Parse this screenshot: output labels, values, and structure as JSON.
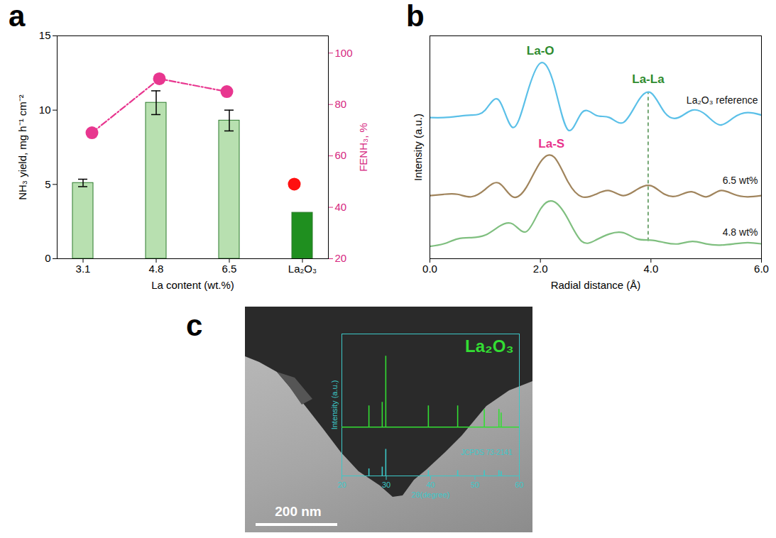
{
  "chart_data": [
    {
      "panel": "a",
      "type": "bar",
      "categories": [
        "3.1",
        "4.8",
        "6.5",
        "La₂O₃"
      ],
      "x_label": "La content (wt.%)",
      "y_label": "NH₃ yield, mg h⁻¹ cm⁻²",
      "y2_label": "FENH₃, %",
      "ylim": [
        0,
        15
      ],
      "yticks": [
        0,
        5,
        10,
        15
      ],
      "y2lim": [
        20,
        106.7
      ],
      "y2ticks": [
        20,
        40,
        60,
        80,
        100
      ],
      "series": [
        {
          "type": "bar",
          "values": [
            5.1,
            10.5,
            9.3,
            3.1
          ],
          "errors": [
            0.25,
            0.8,
            0.7,
            null
          ],
          "colors": [
            "#b8e0b0",
            "#b8e0b0",
            "#b8e0b0",
            "#1f8f1f"
          ]
        },
        {
          "type": "line",
          "axis": "y2",
          "values": [
            69,
            90,
            85,
            null
          ],
          "color": "#e8368f",
          "marker": "circle",
          "line_style": "dashdot"
        },
        {
          "type": "scatter",
          "axis": "y2",
          "values": [
            null,
            null,
            null,
            49
          ],
          "color": "#ff1010",
          "marker": "circle"
        }
      ]
    },
    {
      "panel": "b",
      "type": "line",
      "x_label": "Radial distance (Å)",
      "y_label": "Intensity (a.u.)",
      "xlim": [
        0,
        6
      ],
      "xticks": [
        0,
        2,
        4,
        6
      ],
      "ylim": [
        0,
        9
      ],
      "yticks": [],
      "tick_labels": "x",
      "x": [
        0,
        0.25,
        0.5,
        0.75,
        1,
        1.25,
        1.5,
        1.75,
        2,
        2.25,
        2.5,
        2.75,
        3,
        3.25,
        3.5,
        3.75,
        4,
        4.25,
        4.5,
        4.75,
        5,
        5.25,
        5.5,
        5.75,
        6
      ],
      "series": [
        {
          "name": "La₂O₃ reference",
          "color": "#5bc0e8",
          "values": [
            5.7,
            5.7,
            5.75,
            5.8,
            6.0,
            6.4,
            5.3,
            6.6,
            7.9,
            7.0,
            5.2,
            5.9,
            5.8,
            5.7,
            5.5,
            6.3,
            6.7,
            5.9,
            5.7,
            6.0,
            5.8,
            5.4,
            5.7,
            5.9,
            5.8
          ]
        },
        {
          "name": "6.5 wt%",
          "color": "#a0845c",
          "values": [
            2.55,
            2.6,
            2.6,
            2.5,
            2.8,
            3.05,
            2.5,
            2.9,
            3.9,
            4.1,
            3.1,
            2.5,
            2.6,
            2.75,
            2.55,
            2.8,
            2.95,
            2.6,
            2.55,
            2.7,
            2.5,
            2.75,
            2.6,
            2.5,
            2.55
          ]
        },
        {
          "name": "4.8 wt%",
          "color": "#7fbf7f",
          "values": [
            0.5,
            0.6,
            0.8,
            0.85,
            0.95,
            1.3,
            1.4,
            1.1,
            2.0,
            2.3,
            1.6,
            0.7,
            0.75,
            1.0,
            1.05,
            0.8,
            0.75,
            0.65,
            0.6,
            0.7,
            0.6,
            0.55,
            0.6,
            0.65,
            0.6
          ]
        }
      ],
      "annotations": [
        {
          "text": "La-O",
          "x": 2.0,
          "y": 8.4,
          "color": "#2e8b2e"
        },
        {
          "text": "La-La",
          "x": 3.95,
          "y": 7.25,
          "color": "#2e8b2e"
        },
        {
          "text": "La-S",
          "x": 2.2,
          "y": 4.65,
          "color": "#e8338c"
        }
      ],
      "reference_line": {
        "x": 3.95,
        "y": [
          0.7,
          6.7
        ],
        "color": "#1a6e1a",
        "line_style": "dashed"
      }
    },
    {
      "panel": "c",
      "type": "image",
      "scale_bar": "200 nm",
      "inset": {
        "type": "stick",
        "title": "La₂O₃",
        "x_label": "2θ(degree)",
        "y_label": "Intensity (a.u.)",
        "xlim": [
          20,
          60
        ],
        "xticks": [
          20,
          30,
          40,
          50,
          60
        ],
        "ylim": [
          0,
          1.6
        ],
        "yticks": [],
        "tick_labels": "x",
        "pattern": {
          "color": "#33dd33",
          "baseline": 0.55,
          "x": [
            26.1,
            29.1,
            29.9,
            39.5,
            46.1,
            52.1,
            55.4,
            55.9
          ],
          "heights": [
            0.24,
            0.28,
            0.8,
            0.24,
            0.24,
            0.2,
            0.2,
            0.16
          ]
        },
        "reference": {
          "label": "JCPDS 73-2141",
          "color": "#3cc8c8",
          "x": [
            26.1,
            29.1,
            29.9,
            39.5,
            46.1,
            52.1,
            55.4,
            55.9
          ],
          "heights": [
            0.08,
            0.1,
            0.3,
            0.06,
            0.06,
            0.06,
            0.06,
            0.05
          ]
        }
      }
    }
  ]
}
